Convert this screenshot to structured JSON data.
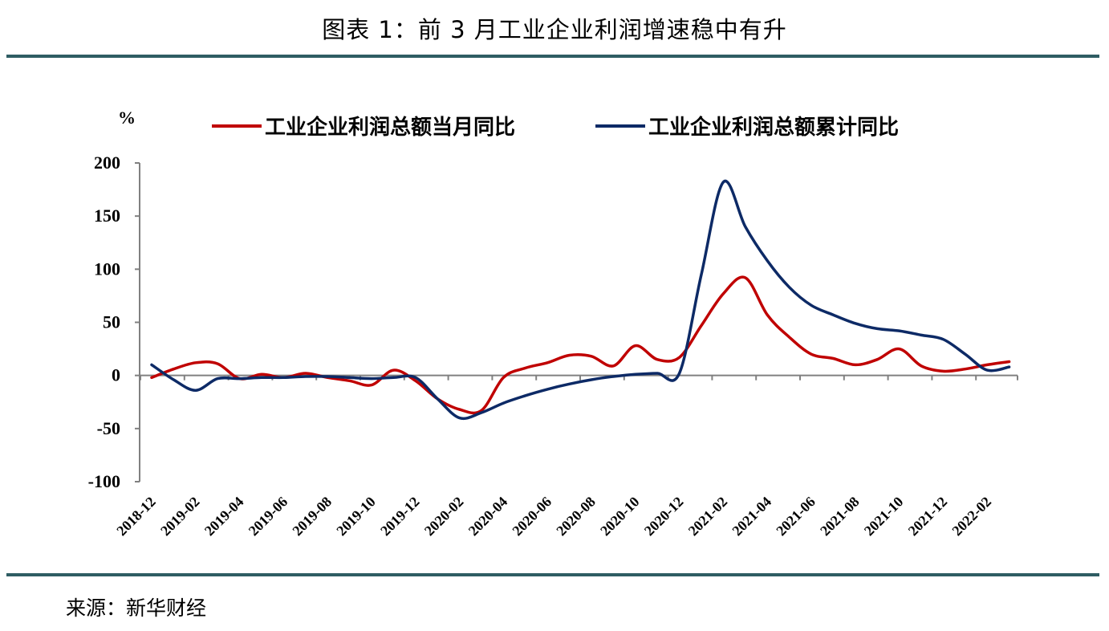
{
  "header": {
    "title": "图表 1：前 3 月工业企业利润增速稳中有升"
  },
  "footer": {
    "source": "来源：新华财经"
  },
  "colors": {
    "rule": "#2e5d63",
    "axis": "#808080",
    "series1": "#c00000",
    "series2": "#0d2a66"
  },
  "chart_data": {
    "type": "line",
    "title": "",
    "ylabel": "%",
    "xlabel": "",
    "ylim": [
      -100,
      200
    ],
    "yticks": [
      200,
      150,
      100,
      50,
      0,
      -50,
      -100
    ],
    "x_tick_labels": [
      "2018-12",
      "2019-02",
      "2019-04",
      "2019-06",
      "2019-08",
      "2019-10",
      "2019-12",
      "2020-02",
      "2020-04",
      "2020-06",
      "2020-08",
      "2020-10",
      "2020-12",
      "2021-02",
      "2021-04",
      "2021-06",
      "2021-08",
      "2021-10",
      "2021-12",
      "2022-02"
    ],
    "x": [
      "2018-12",
      "2019-01",
      "2019-02",
      "2019-03",
      "2019-04",
      "2019-05",
      "2019-06",
      "2019-07",
      "2019-08",
      "2019-09",
      "2019-10",
      "2019-11",
      "2019-12",
      "2020-01",
      "2020-02",
      "2020-03",
      "2020-04",
      "2020-05",
      "2020-06",
      "2020-07",
      "2020-08",
      "2020-09",
      "2020-10",
      "2020-11",
      "2020-12",
      "2021-01",
      "2021-02",
      "2021-03",
      "2021-04",
      "2021-05",
      "2021-06",
      "2021-07",
      "2021-08",
      "2021-09",
      "2021-10",
      "2021-11",
      "2021-12",
      "2022-01",
      "2022-02",
      "2022-03"
    ],
    "legend_position": "top",
    "series": [
      {
        "name": "工业企业利润总额当月同比",
        "color": "#c00000",
        "values": [
          -2.0,
          6.0,
          12.0,
          11.0,
          -3.0,
          1.0,
          -2.0,
          2.0,
          -2.0,
          -5.0,
          -9.0,
          5.0,
          -5.0,
          -22.0,
          -32.0,
          -33.0,
          -2.0,
          7.0,
          12.0,
          19.0,
          18.0,
          9.0,
          28.0,
          15.0,
          17.0,
          47.0,
          77.0,
          92.0,
          57.0,
          36.0,
          20.0,
          16.0,
          10.0,
          15.0,
          25.0,
          9.0,
          4.0,
          6.0,
          10.0,
          13.0
        ]
      },
      {
        "name": "工业企业利润总额累计同比",
        "color": "#0d2a66",
        "values": [
          10.0,
          -4.0,
          -14.0,
          -3.0,
          -3.0,
          -2.0,
          -2.0,
          -1.0,
          -1.0,
          -2.0,
          -3.0,
          -2.0,
          -2.0,
          -22.0,
          -40.0,
          -35.0,
          -26.0,
          -19.0,
          -13.0,
          -8.0,
          -4.0,
          -1.0,
          1.0,
          2.0,
          2.0,
          95.0,
          182.0,
          140.0,
          108.0,
          83.0,
          66.0,
          57.0,
          49.0,
          44.0,
          42.0,
          38.0,
          34.0,
          20.0,
          5.0,
          8.0
        ]
      }
    ]
  }
}
